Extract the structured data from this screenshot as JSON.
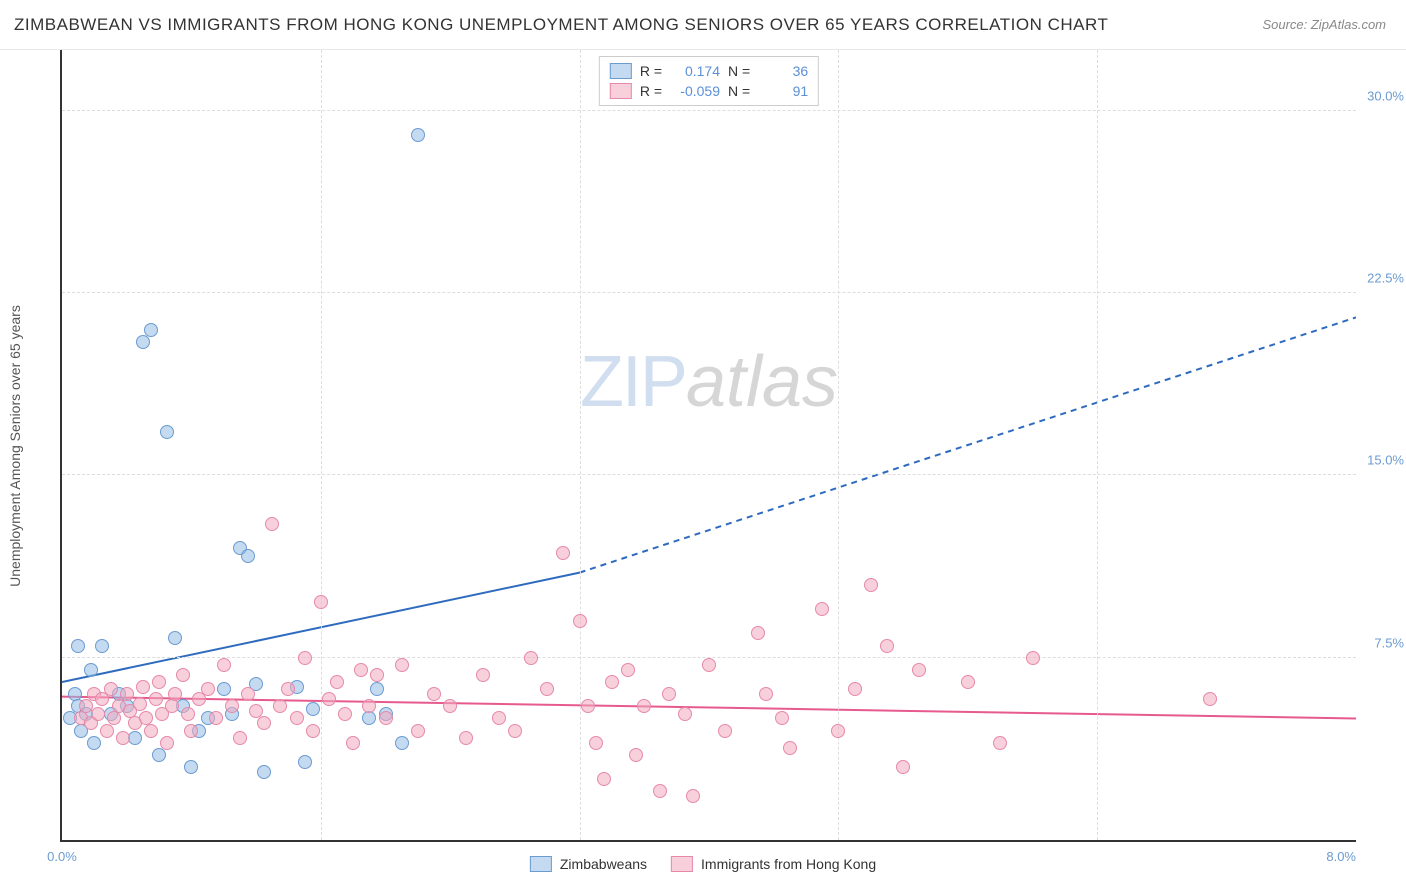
{
  "title": "ZIMBABWEAN VS IMMIGRANTS FROM HONG KONG UNEMPLOYMENT AMONG SENIORS OVER 65 YEARS CORRELATION CHART",
  "source": "Source: ZipAtlas.com",
  "chart": {
    "type": "scatter",
    "y_axis_label": "Unemployment Among Seniors over 65 years",
    "xlim": [
      0,
      8.0
    ],
    "ylim": [
      0,
      32.5
    ],
    "x_ticks_major": [
      1.6,
      3.2,
      4.8,
      6.4
    ],
    "x_tick_labels": {
      "left": "0.0%",
      "right": "8.0%"
    },
    "y_grid": [
      7.5,
      15.0,
      22.5,
      30.0
    ],
    "y_tick_labels": [
      "7.5%",
      "15.0%",
      "22.5%",
      "30.0%"
    ],
    "background_color": "#ffffff",
    "grid_color": "#dddddd",
    "axis_color": "#333333",
    "dot_radius": 7,
    "watermark": {
      "zip": "ZIP",
      "atlas": "atlas"
    },
    "series": [
      {
        "name": "Zimbabweans",
        "fill": "rgba(147,187,227,0.55)",
        "stroke": "#6b9bd1",
        "R": "0.174",
        "N": "36",
        "trend": {
          "x1": 0,
          "y1": 6.5,
          "x2_solid": 3.2,
          "y2_solid": 11.0,
          "x2_dash": 8.0,
          "y2_dash": 21.5,
          "color": "#2e6bbf",
          "width": 2
        },
        "points": [
          [
            0.05,
            5.0
          ],
          [
            0.08,
            6.0
          ],
          [
            0.1,
            5.5
          ],
          [
            0.12,
            4.5
          ],
          [
            0.15,
            5.2
          ],
          [
            0.18,
            7.0
          ],
          [
            0.2,
            4.0
          ],
          [
            0.25,
            8.0
          ],
          [
            0.3,
            5.2
          ],
          [
            0.35,
            6.0
          ],
          [
            0.4,
            5.5
          ],
          [
            0.45,
            4.2
          ],
          [
            0.5,
            20.5
          ],
          [
            0.55,
            21.0
          ],
          [
            0.6,
            3.5
          ],
          [
            0.65,
            16.8
          ],
          [
            0.7,
            8.3
          ],
          [
            0.75,
            5.5
          ],
          [
            0.8,
            3.0
          ],
          [
            0.85,
            4.5
          ],
          [
            0.9,
            5.0
          ],
          [
            1.0,
            6.2
          ],
          [
            1.05,
            5.2
          ],
          [
            1.1,
            12.0
          ],
          [
            1.15,
            11.7
          ],
          [
            1.2,
            6.4
          ],
          [
            1.25,
            2.8
          ],
          [
            1.45,
            6.3
          ],
          [
            1.5,
            3.2
          ],
          [
            1.55,
            5.4
          ],
          [
            1.9,
            5.0
          ],
          [
            1.95,
            6.2
          ],
          [
            2.0,
            5.2
          ],
          [
            2.1,
            4.0
          ],
          [
            2.2,
            29.0
          ],
          [
            0.1,
            8.0
          ]
        ]
      },
      {
        "name": "Immigrants from Hong Kong",
        "fill": "rgba(242,170,192,0.55)",
        "stroke": "#e689aa",
        "R": "-0.059",
        "N": "91",
        "trend": {
          "x1": 0,
          "y1": 5.9,
          "x2_solid": 8.0,
          "y2_solid": 5.0,
          "color": "#e75a8e",
          "width": 2
        },
        "points": [
          [
            0.12,
            5.0
          ],
          [
            0.15,
            5.5
          ],
          [
            0.18,
            4.8
          ],
          [
            0.2,
            6.0
          ],
          [
            0.22,
            5.2
          ],
          [
            0.25,
            5.8
          ],
          [
            0.28,
            4.5
          ],
          [
            0.3,
            6.2
          ],
          [
            0.32,
            5.0
          ],
          [
            0.35,
            5.5
          ],
          [
            0.38,
            4.2
          ],
          [
            0.4,
            6.0
          ],
          [
            0.42,
            5.3
          ],
          [
            0.45,
            4.8
          ],
          [
            0.48,
            5.6
          ],
          [
            0.5,
            6.3
          ],
          [
            0.52,
            5.0
          ],
          [
            0.55,
            4.5
          ],
          [
            0.58,
            5.8
          ],
          [
            0.6,
            6.5
          ],
          [
            0.62,
            5.2
          ],
          [
            0.65,
            4.0
          ],
          [
            0.68,
            5.5
          ],
          [
            0.7,
            6.0
          ],
          [
            0.75,
            6.8
          ],
          [
            0.78,
            5.2
          ],
          [
            0.8,
            4.5
          ],
          [
            0.85,
            5.8
          ],
          [
            0.9,
            6.2
          ],
          [
            0.95,
            5.0
          ],
          [
            1.0,
            7.2
          ],
          [
            1.05,
            5.5
          ],
          [
            1.1,
            4.2
          ],
          [
            1.15,
            6.0
          ],
          [
            1.2,
            5.3
          ],
          [
            1.25,
            4.8
          ],
          [
            1.3,
            13.0
          ],
          [
            1.35,
            5.5
          ],
          [
            1.4,
            6.2
          ],
          [
            1.45,
            5.0
          ],
          [
            1.5,
            7.5
          ],
          [
            1.55,
            4.5
          ],
          [
            1.6,
            9.8
          ],
          [
            1.65,
            5.8
          ],
          [
            1.7,
            6.5
          ],
          [
            1.75,
            5.2
          ],
          [
            1.8,
            4.0
          ],
          [
            1.85,
            7.0
          ],
          [
            1.9,
            5.5
          ],
          [
            1.95,
            6.8
          ],
          [
            2.0,
            5.0
          ],
          [
            2.1,
            7.2
          ],
          [
            2.2,
            4.5
          ],
          [
            2.3,
            6.0
          ],
          [
            2.4,
            5.5
          ],
          [
            2.5,
            4.2
          ],
          [
            2.6,
            6.8
          ],
          [
            2.7,
            5.0
          ],
          [
            2.8,
            4.5
          ],
          [
            2.9,
            7.5
          ],
          [
            3.0,
            6.2
          ],
          [
            3.1,
            11.8
          ],
          [
            3.2,
            9.0
          ],
          [
            3.25,
            5.5
          ],
          [
            3.3,
            4.0
          ],
          [
            3.35,
            2.5
          ],
          [
            3.4,
            6.5
          ],
          [
            3.5,
            7.0
          ],
          [
            3.55,
            3.5
          ],
          [
            3.6,
            5.5
          ],
          [
            3.7,
            2.0
          ],
          [
            3.75,
            6.0
          ],
          [
            3.85,
            5.2
          ],
          [
            3.9,
            1.8
          ],
          [
            4.0,
            7.2
          ],
          [
            4.1,
            4.5
          ],
          [
            4.3,
            8.5
          ],
          [
            4.35,
            6.0
          ],
          [
            4.45,
            5.0
          ],
          [
            4.5,
            3.8
          ],
          [
            4.7,
            9.5
          ],
          [
            4.8,
            4.5
          ],
          [
            4.9,
            6.2
          ],
          [
            5.0,
            10.5
          ],
          [
            5.1,
            8.0
          ],
          [
            5.2,
            3.0
          ],
          [
            5.3,
            7.0
          ],
          [
            5.6,
            6.5
          ],
          [
            5.8,
            4.0
          ],
          [
            6.0,
            7.5
          ],
          [
            7.1,
            5.8
          ]
        ]
      }
    ],
    "legend_top_labels": {
      "R": "R =",
      "N": "N ="
    },
    "legend_bottom": [
      "Zimbabweans",
      "Immigrants from Hong Kong"
    ]
  }
}
